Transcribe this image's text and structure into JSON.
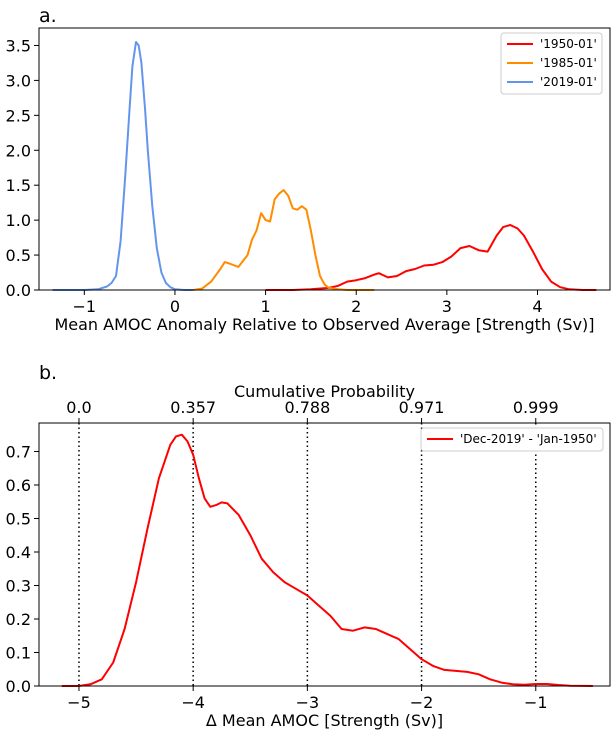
{
  "chart_data": [
    {
      "panel": "a.",
      "type": "line",
      "xlabel": "Mean AMOC Anomaly Relative to Observed Average [Strength (Sv)]",
      "ylabel": "",
      "xlim": [
        -1.5,
        4.8
      ],
      "ylim": [
        0,
        3.75
      ],
      "xticks": [
        -1,
        0,
        1,
        2,
        3,
        4
      ],
      "xtick_labels": [
        "−1",
        "0",
        "1",
        "2",
        "3",
        "4"
      ],
      "yticks": [
        0,
        0.5,
        1,
        1.5,
        2,
        2.5,
        3,
        3.5
      ],
      "ytick_labels": [
        "0.0",
        "0.5",
        "1.0",
        "1.5",
        "2.0",
        "2.5",
        "3.0",
        "3.5"
      ],
      "grid": false,
      "legend": "top-right",
      "series": [
        {
          "name": "'1950-01'",
          "color": "#ff0000",
          "x": [
            1.0,
            1.3,
            1.5,
            1.7,
            1.8,
            1.9,
            2.0,
            2.1,
            2.2,
            2.25,
            2.35,
            2.45,
            2.55,
            2.65,
            2.75,
            2.85,
            2.95,
            3.05,
            3.15,
            3.25,
            3.35,
            3.45,
            3.55,
            3.62,
            3.7,
            3.78,
            3.85,
            3.95,
            4.05,
            4.15,
            4.25,
            4.35,
            4.5,
            4.65
          ],
          "y": [
            0.0,
            0.0,
            0.01,
            0.03,
            0.06,
            0.12,
            0.14,
            0.17,
            0.22,
            0.24,
            0.18,
            0.2,
            0.27,
            0.3,
            0.35,
            0.36,
            0.4,
            0.48,
            0.6,
            0.63,
            0.57,
            0.55,
            0.78,
            0.9,
            0.93,
            0.88,
            0.78,
            0.55,
            0.3,
            0.12,
            0.04,
            0.01,
            0.0,
            0.0
          ]
        },
        {
          "name": "'1985-01'",
          "color": "#ff8c00",
          "x": [
            0.2,
            0.3,
            0.4,
            0.5,
            0.55,
            0.6,
            0.7,
            0.8,
            0.85,
            0.9,
            0.95,
            1.0,
            1.05,
            1.1,
            1.15,
            1.2,
            1.25,
            1.3,
            1.35,
            1.4,
            1.45,
            1.5,
            1.55,
            1.6,
            1.65,
            1.7,
            1.8,
            1.9,
            2.0,
            2.2
          ],
          "y": [
            0.0,
            0.02,
            0.12,
            0.3,
            0.4,
            0.38,
            0.33,
            0.5,
            0.72,
            0.85,
            1.1,
            1.0,
            0.98,
            1.3,
            1.38,
            1.43,
            1.35,
            1.17,
            1.15,
            1.2,
            1.15,
            0.85,
            0.5,
            0.2,
            0.08,
            0.03,
            0.01,
            0.0,
            0.0,
            0.0
          ]
        },
        {
          "name": "'2019-01'",
          "color": "#6495ed",
          "x": [
            -1.35,
            -1.0,
            -0.85,
            -0.75,
            -0.7,
            -0.65,
            -0.6,
            -0.55,
            -0.5,
            -0.47,
            -0.43,
            -0.4,
            -0.37,
            -0.33,
            -0.3,
            -0.25,
            -0.2,
            -0.15,
            -0.1,
            -0.05,
            0.0,
            0.1,
            0.2
          ],
          "y": [
            0.0,
            0.0,
            0.01,
            0.05,
            0.1,
            0.2,
            0.7,
            1.6,
            2.6,
            3.2,
            3.55,
            3.5,
            3.25,
            2.6,
            2.0,
            1.2,
            0.6,
            0.25,
            0.1,
            0.04,
            0.01,
            0.0,
            0.0
          ]
        }
      ]
    },
    {
      "panel": "b.",
      "type": "line",
      "xlabel": "Δ Mean AMOC [Strength (Sv)]",
      "secondary_xlabel": "Cumulative Probability",
      "xlim": [
        -5.35,
        -0.35
      ],
      "ylim": [
        0,
        0.785
      ],
      "xticks": [
        -5,
        -4,
        -3,
        -2,
        -1
      ],
      "xtick_labels": [
        "−5",
        "−4",
        "−3",
        "−2",
        "−1"
      ],
      "yticks": [
        0,
        0.1,
        0.2,
        0.3,
        0.4,
        0.5,
        0.6,
        0.7
      ],
      "ytick_labels": [
        "0.0",
        "0.1",
        "0.2",
        "0.3",
        "0.4",
        "0.5",
        "0.6",
        "0.7"
      ],
      "top_ticks": [
        -5,
        -4,
        -3,
        -2,
        -1
      ],
      "top_tick_labels": [
        "0.0",
        "0.357",
        "0.788",
        "0.971",
        "0.999"
      ],
      "vlines": [
        -5,
        -4,
        -3,
        -2,
        -1
      ],
      "grid": false,
      "legend": "top-right",
      "series": [
        {
          "name": "'Dec-2019' - 'Jan-1950'",
          "color": "#ff0000",
          "x": [
            -5.15,
            -5.0,
            -4.9,
            -4.8,
            -4.7,
            -4.6,
            -4.5,
            -4.4,
            -4.3,
            -4.2,
            -4.15,
            -4.1,
            -4.05,
            -4.0,
            -3.95,
            -3.9,
            -3.85,
            -3.8,
            -3.75,
            -3.7,
            -3.6,
            -3.5,
            -3.4,
            -3.3,
            -3.2,
            -3.1,
            -3.0,
            -2.9,
            -2.8,
            -2.7,
            -2.6,
            -2.5,
            -2.4,
            -2.3,
            -2.2,
            -2.1,
            -2.0,
            -1.9,
            -1.8,
            -1.7,
            -1.6,
            -1.5,
            -1.4,
            -1.3,
            -1.2,
            -1.1,
            -1.0,
            -0.9,
            -0.8,
            -0.7,
            -0.5
          ],
          "y": [
            0.0,
            0.0,
            0.005,
            0.02,
            0.07,
            0.17,
            0.31,
            0.47,
            0.62,
            0.72,
            0.745,
            0.75,
            0.73,
            0.69,
            0.62,
            0.56,
            0.535,
            0.54,
            0.548,
            0.545,
            0.51,
            0.45,
            0.38,
            0.34,
            0.31,
            0.29,
            0.27,
            0.24,
            0.21,
            0.17,
            0.165,
            0.175,
            0.17,
            0.155,
            0.14,
            0.11,
            0.08,
            0.06,
            0.048,
            0.045,
            0.042,
            0.035,
            0.02,
            0.01,
            0.005,
            0.004,
            0.006,
            0.006,
            0.003,
            0.001,
            0.0
          ]
        }
      ]
    }
  ]
}
